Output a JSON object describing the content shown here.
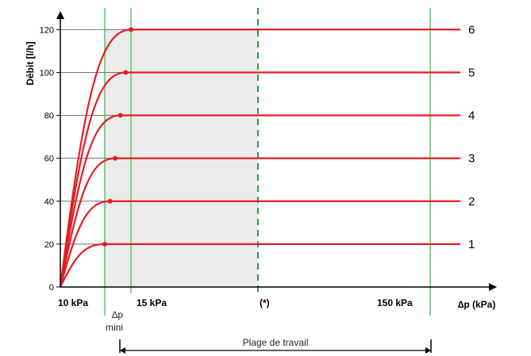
{
  "chart_data": {
    "type": "line",
    "ylabel": "Débit [l/h]",
    "xlabel": "∆p (kPa)",
    "y_ticks": [
      "0",
      "20",
      "40",
      "60",
      "80",
      "100",
      "120"
    ],
    "ylim": [
      0,
      130
    ],
    "series": [
      {
        "name": "1",
        "value": 20
      },
      {
        "name": "2",
        "value": 40
      },
      {
        "name": "3",
        "value": 60
      },
      {
        "name": "4",
        "value": 80
      },
      {
        "name": "5",
        "value": 100
      },
      {
        "name": "6",
        "value": 120
      }
    ],
    "x_markers": [
      {
        "label": "10 kPa"
      },
      {
        "label": "∆p",
        "sublabel": "mini"
      },
      {
        "label": "15 kPa"
      },
      {
        "label": "(*)"
      },
      {
        "label": "150 kPa"
      }
    ],
    "shaded_region": "working range (∆p mini → (*))",
    "range_label": "Plage de travail",
    "colors": {
      "curve": "#e31e24",
      "marker_line": "#3cb54a",
      "shade": "#ebebeb",
      "axis": "#000000"
    }
  }
}
